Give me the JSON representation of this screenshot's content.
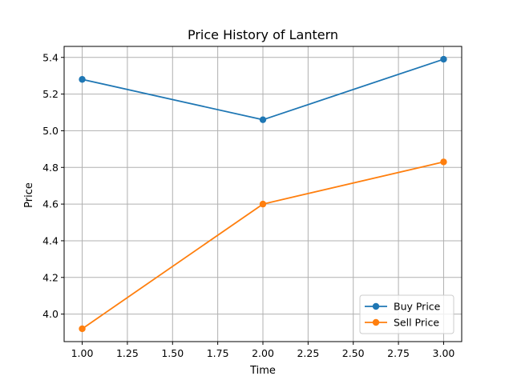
{
  "chart_data": {
    "type": "line",
    "title": "Price History of Lantern",
    "xlabel": "Time",
    "ylabel": "Price",
    "xlim": [
      0.9,
      3.1
    ],
    "ylim": [
      3.85,
      5.46
    ],
    "xticks": [
      1.0,
      1.25,
      1.5,
      1.75,
      2.0,
      2.25,
      2.5,
      2.75,
      3.0
    ],
    "xtick_labels": [
      "1.00",
      "1.25",
      "1.50",
      "1.75",
      "2.00",
      "2.25",
      "2.50",
      "2.75",
      "3.00"
    ],
    "yticks": [
      4.0,
      4.2,
      4.4,
      4.6,
      4.8,
      5.0,
      5.2,
      5.4
    ],
    "ytick_labels": [
      "4.0",
      "4.2",
      "4.4",
      "4.6",
      "4.8",
      "5.0",
      "5.2",
      "5.4"
    ],
    "grid": true,
    "legend_position": "lower-right",
    "x": [
      1,
      2,
      3
    ],
    "series": [
      {
        "name": "Buy Price",
        "color": "#1f77b4",
        "values": [
          5.28,
          5.06,
          5.39
        ]
      },
      {
        "name": "Sell Price",
        "color": "#ff7f0e",
        "values": [
          3.92,
          4.6,
          4.83
        ]
      }
    ]
  }
}
